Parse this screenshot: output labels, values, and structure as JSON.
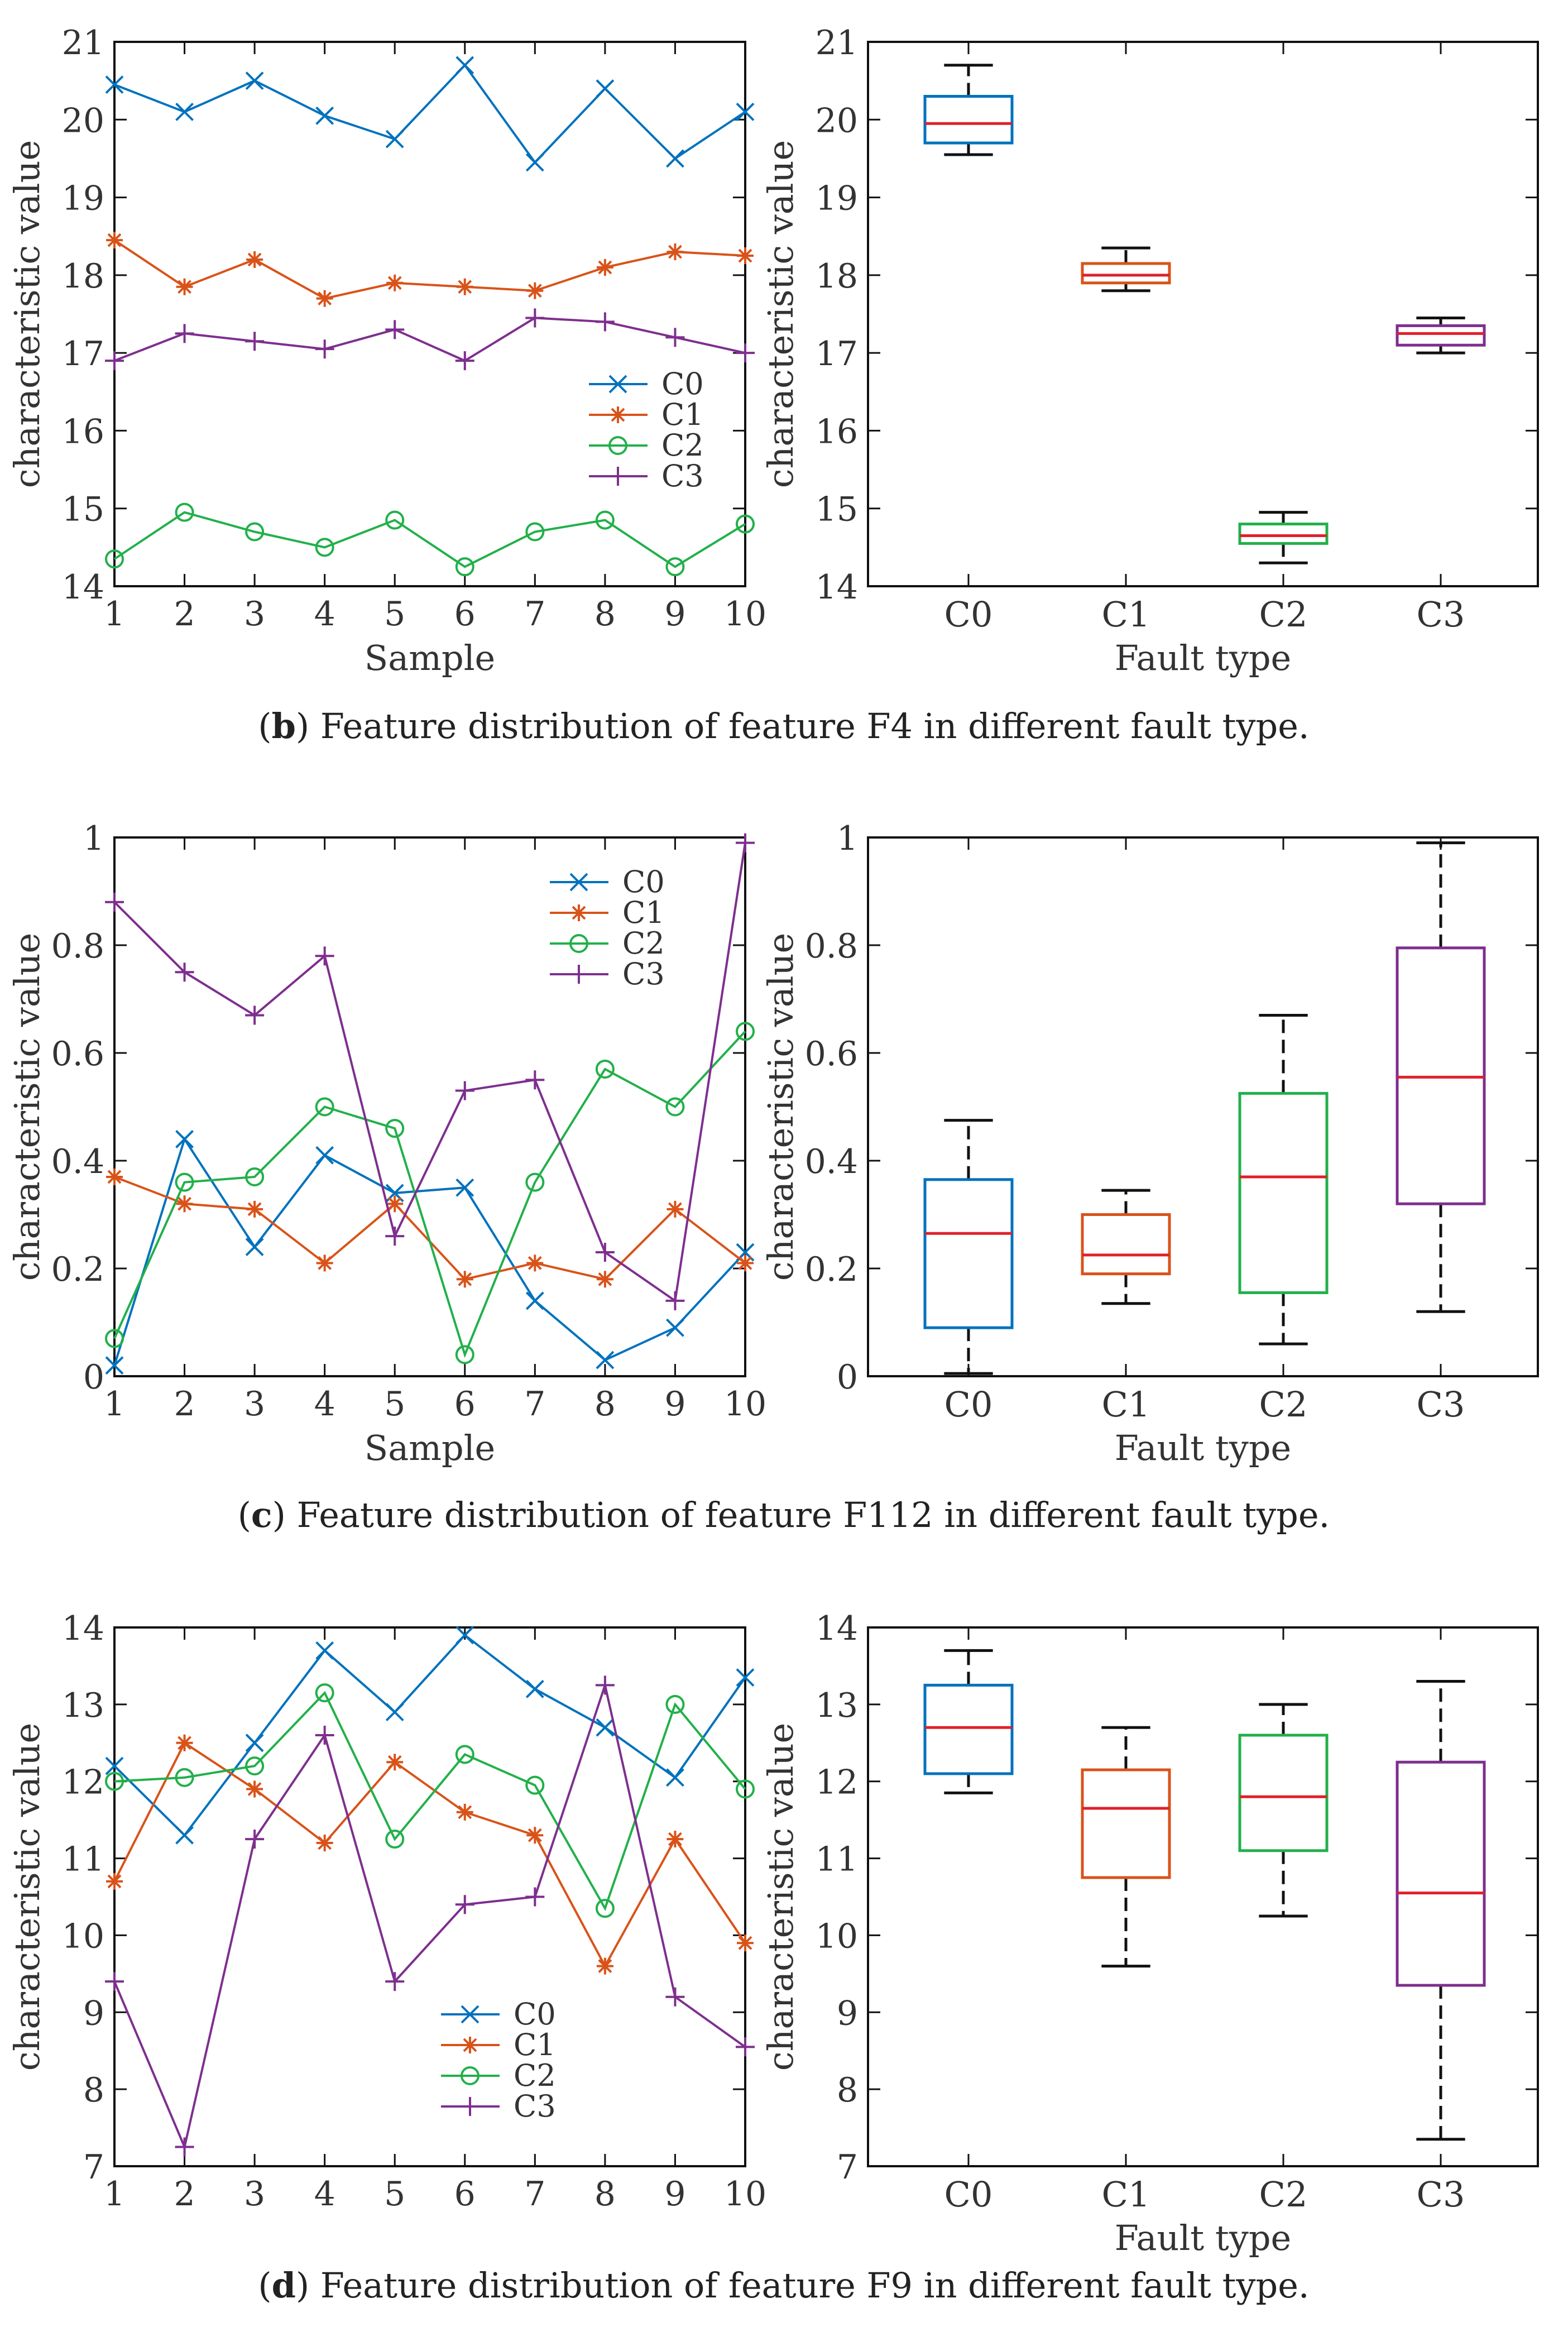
{
  "colors": {
    "C0": "#0072BD",
    "C1": "#D95319",
    "C2": "#22B04A",
    "C3": "#7E2F8E",
    "median": "#E0202A",
    "whisker": "#111111"
  },
  "captions": [
    {
      "letter": "b",
      "text": ") Feature distribution of feature F4 in different fault type."
    },
    {
      "letter": "c",
      "text": ") Feature distribution of feature F112 in different fault type."
    },
    {
      "letter": "d",
      "text": ") Feature distribution of feature F9 in different fault type."
    }
  ],
  "chart_data": [
    {
      "type": "line",
      "panel": "b-left",
      "title": "",
      "xlabel": "Sample",
      "ylabel": "characteristic value",
      "x": [
        1,
        2,
        3,
        4,
        5,
        6,
        7,
        8,
        9,
        10
      ],
      "xticks": [
        "1",
        "2",
        "3",
        "4",
        "5",
        "6",
        "7",
        "8",
        "9",
        "10"
      ],
      "ylim": [
        14,
        21
      ],
      "yticks": [
        "14",
        "15",
        "16",
        "17",
        "18",
        "19",
        "20",
        "21"
      ],
      "legend_position": "right-middle",
      "series": [
        {
          "name": "C0",
          "marker": "x",
          "values": [
            20.45,
            20.1,
            20.5,
            20.05,
            19.75,
            20.7,
            19.45,
            20.4,
            19.5,
            20.1
          ]
        },
        {
          "name": "C1",
          "marker": "*",
          "values": [
            18.45,
            17.85,
            18.2,
            17.7,
            17.9,
            17.85,
            17.8,
            18.1,
            18.3,
            18.25
          ]
        },
        {
          "name": "C2",
          "marker": "o",
          "values": [
            14.35,
            14.95,
            14.7,
            14.5,
            14.85,
            14.25,
            14.7,
            14.85,
            14.25,
            14.8
          ]
        },
        {
          "name": "C3",
          "marker": "+",
          "values": [
            16.9,
            17.25,
            17.15,
            17.05,
            17.3,
            16.9,
            17.45,
            17.4,
            17.2,
            17.0
          ]
        }
      ]
    },
    {
      "type": "box",
      "panel": "b-right",
      "title": "",
      "xlabel": "Fault type",
      "ylabel": "characteristic value",
      "categories": [
        "C0",
        "C1",
        "C2",
        "C3"
      ],
      "ylim": [
        14,
        21
      ],
      "yticks": [
        "14",
        "15",
        "16",
        "17",
        "18",
        "19",
        "20",
        "21"
      ],
      "boxes": [
        {
          "name": "C0",
          "min": 19.55,
          "q1": 19.7,
          "median": 19.95,
          "q3": 20.3,
          "max": 20.7
        },
        {
          "name": "C1",
          "min": 17.8,
          "q1": 17.9,
          "median": 18.0,
          "q3": 18.15,
          "max": 18.35
        },
        {
          "name": "C2",
          "min": 14.3,
          "q1": 14.55,
          "median": 14.65,
          "q3": 14.8,
          "max": 14.95
        },
        {
          "name": "C3",
          "min": 17.0,
          "q1": 17.1,
          "median": 17.25,
          "q3": 17.35,
          "max": 17.45
        }
      ]
    },
    {
      "type": "line",
      "panel": "c-left",
      "title": "",
      "xlabel": "Sample",
      "ylabel": "characteristic value",
      "x": [
        1,
        2,
        3,
        4,
        5,
        6,
        7,
        8,
        9,
        10
      ],
      "xticks": [
        "1",
        "2",
        "3",
        "4",
        "5",
        "6",
        "7",
        "8",
        "9",
        "10"
      ],
      "ylim": [
        0,
        1
      ],
      "yticks": [
        "0",
        "0.2",
        "0.4",
        "0.6",
        "0.8",
        "1"
      ],
      "legend_position": "top-right",
      "series": [
        {
          "name": "C0",
          "marker": "x",
          "values": [
            0.02,
            0.44,
            0.24,
            0.41,
            0.34,
            0.35,
            0.14,
            0.03,
            0.09,
            0.23
          ]
        },
        {
          "name": "C1",
          "marker": "*",
          "values": [
            0.37,
            0.32,
            0.31,
            0.21,
            0.32,
            0.18,
            0.21,
            0.18,
            0.31,
            0.21
          ]
        },
        {
          "name": "C2",
          "marker": "o",
          "values": [
            0.07,
            0.36,
            0.37,
            0.5,
            0.46,
            0.04,
            0.36,
            0.57,
            0.5,
            0.64
          ]
        },
        {
          "name": "C3",
          "marker": "+",
          "values": [
            0.88,
            0.75,
            0.67,
            0.78,
            0.26,
            0.53,
            0.55,
            0.23,
            0.14,
            0.99
          ]
        }
      ]
    },
    {
      "type": "box",
      "panel": "c-right",
      "title": "",
      "xlabel": "Fault type",
      "ylabel": "characteristic value",
      "categories": [
        "C0",
        "C1",
        "C2",
        "C3"
      ],
      "ylim": [
        0,
        1
      ],
      "yticks": [
        "0",
        "0.2",
        "0.4",
        "0.6",
        "0.8",
        "1"
      ],
      "boxes": [
        {
          "name": "C0",
          "min": 0.005,
          "q1": 0.09,
          "median": 0.265,
          "q3": 0.365,
          "max": 0.475
        },
        {
          "name": "C1",
          "min": 0.135,
          "q1": 0.19,
          "median": 0.225,
          "q3": 0.3,
          "max": 0.345
        },
        {
          "name": "C2",
          "min": 0.06,
          "q1": 0.155,
          "median": 0.37,
          "q3": 0.525,
          "max": 0.67
        },
        {
          "name": "C3",
          "min": 0.12,
          "q1": 0.32,
          "median": 0.555,
          "q3": 0.795,
          "max": 0.99
        }
      ]
    },
    {
      "type": "line",
      "panel": "d-left",
      "title": "",
      "xlabel": "",
      "ylabel": "characteristic value",
      "x": [
        1,
        2,
        3,
        4,
        5,
        6,
        7,
        8,
        9,
        10
      ],
      "xticks": [
        "1",
        "2",
        "3",
        "4",
        "5",
        "6",
        "7",
        "8",
        "9",
        "10"
      ],
      "ylim": [
        7,
        14
      ],
      "yticks": [
        "7",
        "8",
        "9",
        "10",
        "11",
        "12",
        "13",
        "14"
      ],
      "legend_position": "bottom-middle",
      "series": [
        {
          "name": "C0",
          "marker": "x",
          "values": [
            12.2,
            11.3,
            12.5,
            13.7,
            12.9,
            13.9,
            13.2,
            12.7,
            12.05,
            13.35
          ]
        },
        {
          "name": "C1",
          "marker": "*",
          "values": [
            10.7,
            12.5,
            11.9,
            11.2,
            12.25,
            11.6,
            11.3,
            9.6,
            11.25,
            9.9
          ]
        },
        {
          "name": "C2",
          "marker": "o",
          "values": [
            12.0,
            12.05,
            12.2,
            13.15,
            11.25,
            12.35,
            11.95,
            10.35,
            13.0,
            11.9
          ]
        },
        {
          "name": "C3",
          "marker": "+",
          "values": [
            9.4,
            7.25,
            11.25,
            12.6,
            9.4,
            10.4,
            10.5,
            13.25,
            9.2,
            8.55
          ]
        }
      ]
    },
    {
      "type": "box",
      "panel": "d-right",
      "title": "",
      "xlabel": "Fault type",
      "ylabel": "characteristic value",
      "categories": [
        "C0",
        "C1",
        "C2",
        "C3"
      ],
      "ylim": [
        7,
        14
      ],
      "yticks": [
        "7",
        "8",
        "9",
        "10",
        "11",
        "12",
        "13",
        "14"
      ],
      "boxes": [
        {
          "name": "C0",
          "min": 11.85,
          "q1": 12.1,
          "median": 12.7,
          "q3": 13.25,
          "max": 13.7
        },
        {
          "name": "C1",
          "min": 9.6,
          "q1": 10.75,
          "median": 11.65,
          "q3": 12.15,
          "max": 12.7
        },
        {
          "name": "C2",
          "min": 10.25,
          "q1": 11.1,
          "median": 11.8,
          "q3": 12.6,
          "max": 13.0
        },
        {
          "name": "C3",
          "min": 7.35,
          "q1": 9.35,
          "median": 10.55,
          "q3": 12.25,
          "max": 13.3
        }
      ]
    }
  ]
}
